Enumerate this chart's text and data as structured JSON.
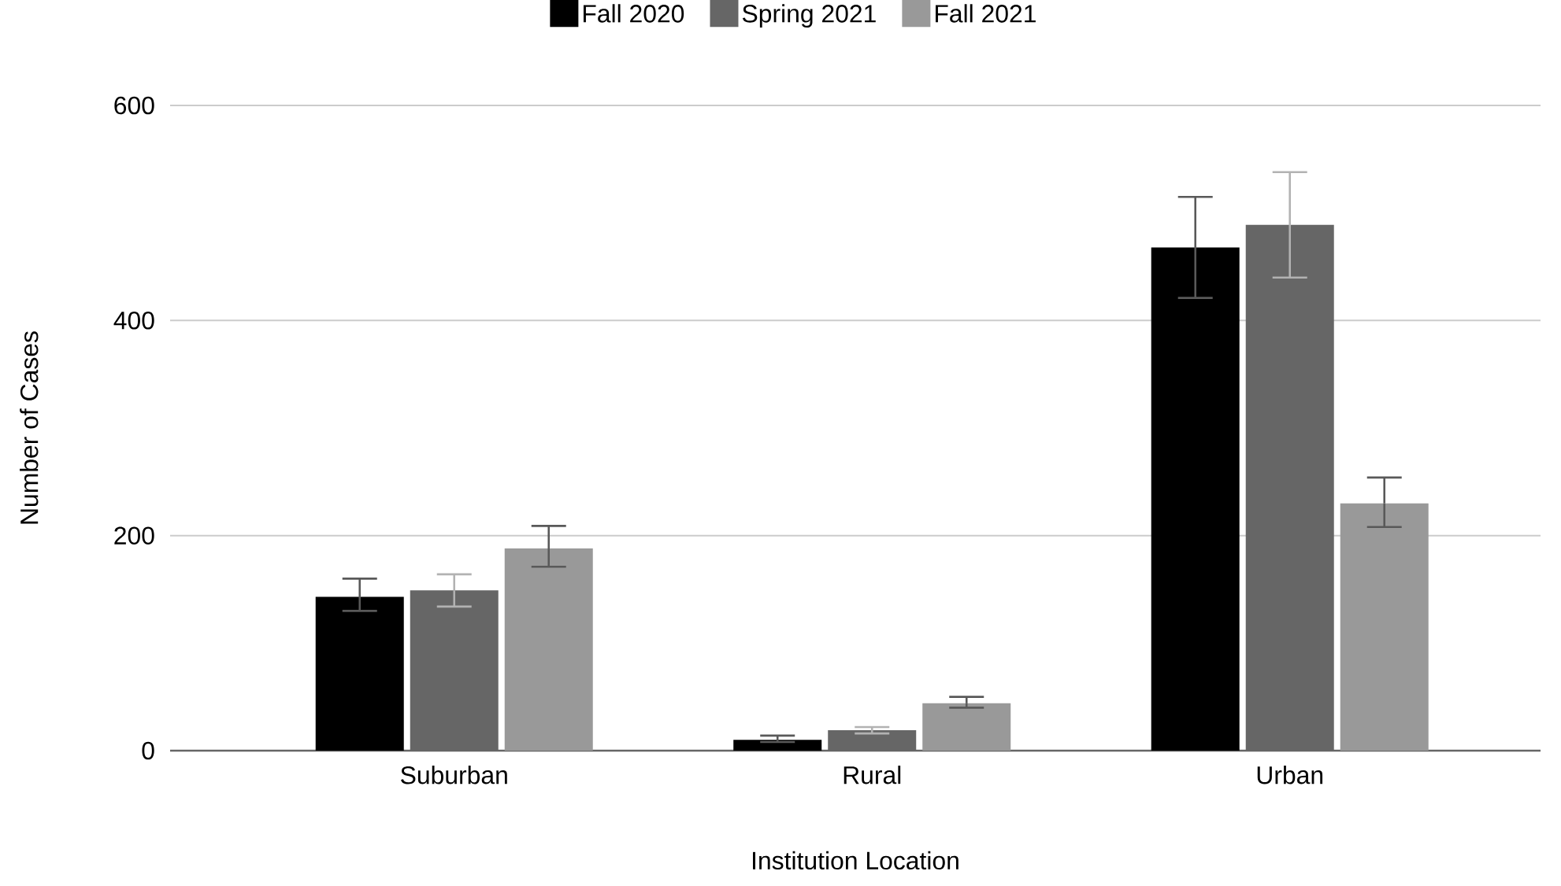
{
  "chart_data": {
    "type": "bar",
    "xlabel": "Institution Location",
    "ylabel": "Number of Cases",
    "categories": [
      "Suburban",
      "Rural",
      "Urban"
    ],
    "series": [
      {
        "name": "Fall 2020",
        "color": "#000000",
        "values": [
          143,
          10,
          468
        ],
        "errors": [
          [
            130,
            160
          ],
          [
            8,
            14
          ],
          [
            421,
            515
          ]
        ]
      },
      {
        "name": "Spring 2021",
        "color": "#666666",
        "values": [
          149,
          19,
          489
        ],
        "errors": [
          [
            134,
            164
          ],
          [
            16,
            22
          ],
          [
            440,
            538
          ]
        ]
      },
      {
        "name": "Fall 2021",
        "color": "#999999",
        "values": [
          188,
          44,
          230
        ],
        "errors": [
          [
            171,
            209
          ],
          [
            40,
            50
          ],
          [
            208,
            254
          ]
        ]
      }
    ],
    "ylim": [
      0,
      600
    ],
    "yticks": [
      0,
      200,
      400,
      600
    ],
    "grid": "y",
    "legend": "top"
  }
}
